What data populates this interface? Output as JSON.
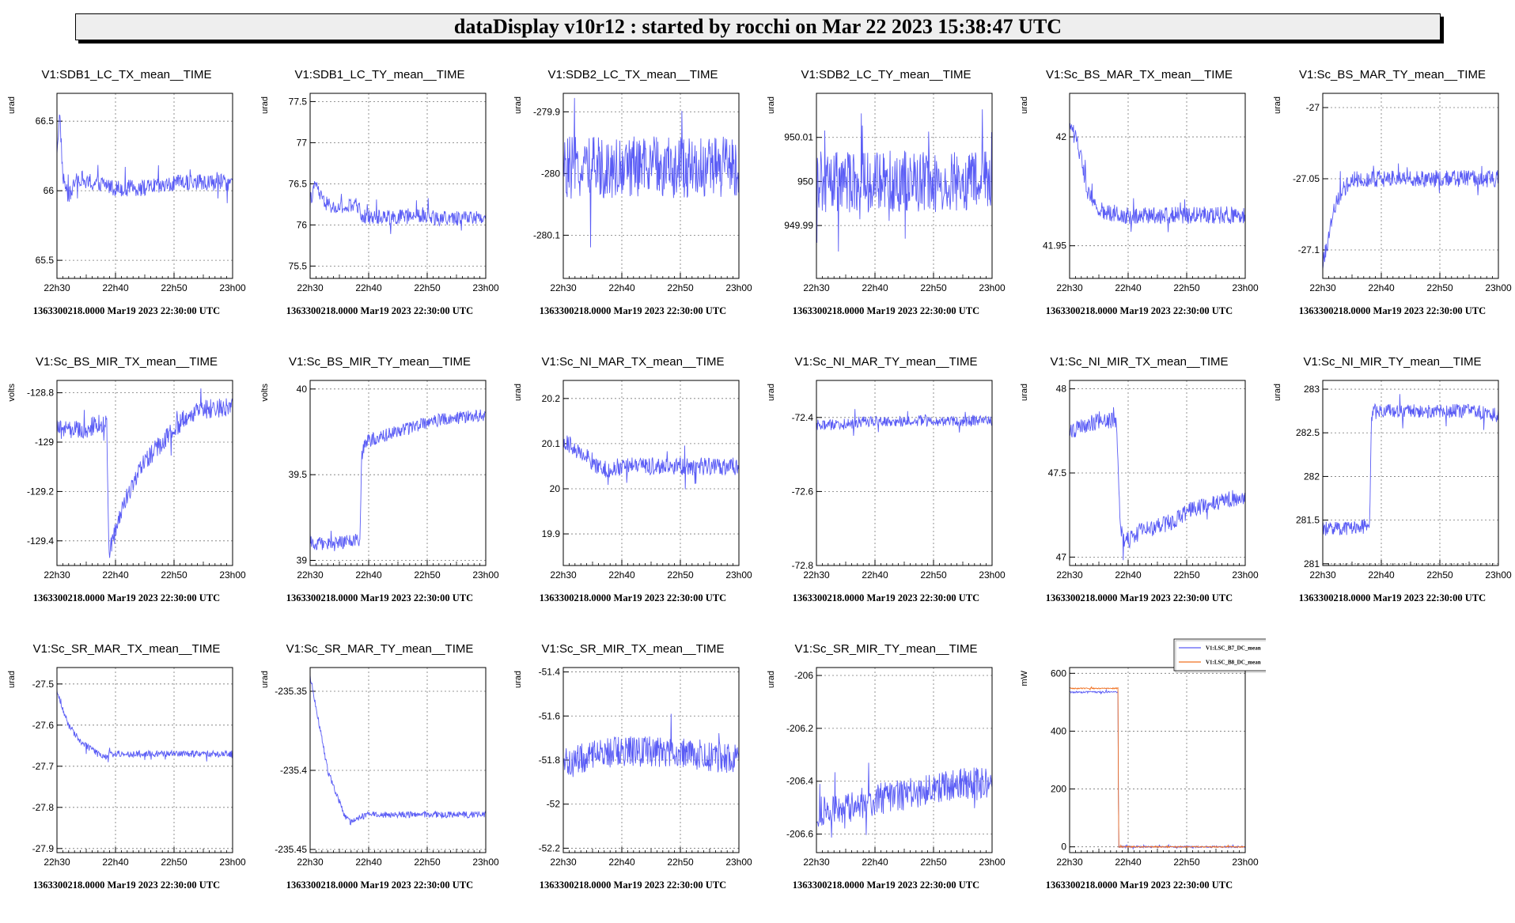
{
  "header": {
    "title": "dataDisplay v10r12 : started by rocchi on Mar 22 2023 15:38:47 UTC"
  },
  "colors": {
    "trace": "#5a5cf5",
    "trace2": "#f07020",
    "background": "#ffffff",
    "title_bg": "#eeeeee"
  },
  "common": {
    "footer": "1363300218.0000 Mar19 2023 22:30:00 UTC",
    "x_ticks": [
      "22h30",
      "22h40",
      "22h50",
      "23h00"
    ],
    "x_range_minutes": [
      0,
      30
    ]
  },
  "chart_data": [
    {
      "type": "line",
      "title": "V1:SDB1_LC_TX_mean__TIME",
      "ylabel": "urad",
      "ylim": [
        65.37,
        66.7
      ],
      "yticks": [
        65.5,
        66,
        66.5
      ],
      "ytick_labels": [
        "65.5",
        "66",
        "66.5"
      ],
      "series": [
        {
          "name": "V1:SDB1_LC_TX_mean",
          "x": [
            0,
            0.5,
            1,
            2,
            3,
            4,
            5,
            6,
            8,
            10,
            12,
            15,
            18,
            20,
            22,
            25,
            28,
            30
          ],
          "y": [
            66.3,
            66.55,
            66.1,
            65.95,
            66.05,
            66.1,
            66.05,
            66.05,
            66.05,
            66.02,
            66.02,
            66.02,
            66.03,
            66.05,
            66.06,
            66.06,
            66.06,
            66.06
          ],
          "noise": 0.06
        }
      ]
    },
    {
      "type": "line",
      "title": "V1:SDB1_LC_TY_mean__TIME",
      "ylabel": "urad",
      "ylim": [
        75.35,
        77.6
      ],
      "yticks": [
        75.5,
        76,
        76.5,
        77,
        77.5
      ],
      "ytick_labels": [
        "75.5",
        "76",
        "76.5",
        "77",
        "77.5"
      ],
      "series": [
        {
          "name": "V1:SDB1_LC_TY_mean",
          "x": [
            0,
            1,
            2,
            4,
            6,
            8,
            9,
            10,
            12,
            15,
            18,
            20,
            22,
            25,
            28,
            30
          ],
          "y": [
            76.3,
            76.5,
            76.3,
            76.2,
            76.2,
            76.25,
            76.1,
            76.1,
            76.1,
            76.1,
            76.1,
            76.1,
            76.08,
            76.08,
            76.1,
            76.1
          ],
          "noise": 0.09
        }
      ]
    },
    {
      "type": "line",
      "title": "V1:SDB2_LC_TX_mean__TIME",
      "ylabel": "urad",
      "ylim": [
        -280.17,
        -279.87
      ],
      "yticks": [
        -280.1,
        -280,
        -279.9
      ],
      "ytick_labels": [
        "-280.1",
        "-280",
        "-279.9"
      ],
      "series": [
        {
          "name": "V1:SDB2_LC_TX_mean",
          "x": [
            0,
            5,
            10,
            15,
            20,
            25,
            30
          ],
          "y": [
            -279.99,
            -279.99,
            -279.99,
            -279.99,
            -279.99,
            -279.99,
            -279.99
          ],
          "noise": 0.05
        }
      ]
    },
    {
      "type": "line",
      "title": "V1:SDB2_LC_TY_mean__TIME",
      "ylabel": "urad",
      "ylim": [
        949.978,
        950.02
      ],
      "yticks": [
        949.99,
        950,
        950.01
      ],
      "ytick_labels": [
        "949.99",
        "950",
        "950.01"
      ],
      "series": [
        {
          "name": "V1:SDB2_LC_TY_mean",
          "x": [
            0,
            5,
            10,
            15,
            20,
            25,
            30
          ],
          "y": [
            950,
            950,
            950,
            950,
            950,
            950,
            950
          ],
          "noise": 0.007
        }
      ]
    },
    {
      "type": "line",
      "title": "V1:Sc_BS_MAR_TX_mean__TIME",
      "ylabel": "urad",
      "ylim": [
        41.935,
        42.02
      ],
      "yticks": [
        41.95,
        42
      ],
      "ytick_labels": [
        "41.95",
        "42"
      ],
      "series": [
        {
          "name": "V1:Sc_BS_MAR_TX_mean",
          "x": [
            0,
            1,
            2,
            3,
            4,
            5,
            6,
            8,
            10,
            15,
            20,
            25,
            30
          ],
          "y": [
            42.005,
            42.0,
            41.99,
            41.975,
            41.97,
            41.967,
            41.965,
            41.965,
            41.964,
            41.964,
            41.964,
            41.964,
            41.964
          ],
          "noise": 0.004
        }
      ]
    },
    {
      "type": "line",
      "title": "V1:Sc_BS_MAR_TY_mean__TIME",
      "ylabel": "urad",
      "ylim": [
        -27.12,
        -26.99
      ],
      "yticks": [
        -27.1,
        -27.05,
        -27
      ],
      "ytick_labels": [
        "-27.1",
        "-27.05",
        "-27"
      ],
      "series": [
        {
          "name": "V1:Sc_BS_MAR_TY_mean",
          "x": [
            0,
            1,
            2,
            3,
            4,
            5,
            6,
            8,
            10,
            15,
            20,
            25,
            30
          ],
          "y": [
            -27.11,
            -27.09,
            -27.07,
            -27.06,
            -27.055,
            -27.05,
            -27.05,
            -27.05,
            -27.05,
            -27.05,
            -27.05,
            -27.05,
            -27.05
          ],
          "noise": 0.006
        }
      ]
    },
    {
      "type": "line",
      "title": "V1:Sc_BS_MIR_TX_mean__TIME",
      "ylabel": "volts",
      "ylim": [
        -129.5,
        -128.75
      ],
      "yticks": [
        -129.4,
        -129.2,
        -129,
        -128.8
      ],
      "ytick_labels": [
        "-129.4",
        "-129.2",
        "-129",
        "-128.8"
      ],
      "series": [
        {
          "name": "V1:Sc_BS_MIR_TX_mean",
          "x": [
            0,
            4,
            8.5,
            8.8,
            9,
            10,
            12,
            14,
            16,
            18,
            20,
            22,
            25,
            28,
            30
          ],
          "y": [
            -128.95,
            -128.95,
            -128.92,
            -129.35,
            -129.45,
            -129.35,
            -129.22,
            -129.12,
            -129.05,
            -129.0,
            -128.95,
            -128.9,
            -128.87,
            -128.86,
            -128.86
          ],
          "noise": 0.04
        }
      ]
    },
    {
      "type": "line",
      "title": "V1:Sc_BS_MIR_TY_mean__TIME",
      "ylabel": "volts",
      "ylim": [
        38.97,
        40.05
      ],
      "yticks": [
        39,
        39.5,
        40
      ],
      "ytick_labels": [
        "39",
        "39.5",
        "40"
      ],
      "series": [
        {
          "name": "V1:Sc_BS_MIR_TY_mean",
          "x": [
            0,
            4,
            8.5,
            8.8,
            9,
            10,
            12,
            15,
            18,
            20,
            22,
            25,
            28,
            30
          ],
          "y": [
            39.1,
            39.1,
            39.12,
            39.6,
            39.65,
            39.7,
            39.72,
            39.75,
            39.78,
            39.8,
            39.82,
            39.83,
            39.85,
            39.85
          ],
          "noise": 0.04
        }
      ]
    },
    {
      "type": "line",
      "title": "V1:Sc_NI_MAR_TX_mean__TIME",
      "ylabel": "urad",
      "ylim": [
        19.83,
        20.24
      ],
      "yticks": [
        19.9,
        20,
        20.1,
        20.2
      ],
      "ytick_labels": [
        "19.9",
        "20",
        "20.1",
        "20.2"
      ],
      "series": [
        {
          "name": "V1:Sc_NI_MAR_TX_mean",
          "x": [
            0,
            2,
            4,
            6,
            8,
            9,
            10,
            15,
            20,
            25,
            30
          ],
          "y": [
            20.11,
            20.09,
            20.07,
            20.05,
            20.04,
            20.05,
            20.05,
            20.05,
            20.05,
            20.05,
            20.05
          ],
          "noise": 0.02
        }
      ]
    },
    {
      "type": "line",
      "title": "V1:Sc_NI_MAR_TY_mean__TIME",
      "ylabel": "urad",
      "ylim": [
        -72.8,
        -72.3
      ],
      "yticks": [
        -72.8,
        -72.6,
        -72.4
      ],
      "ytick_labels": [
        "-72.8",
        "-72.6",
        "-72.4"
      ],
      "series": [
        {
          "name": "V1:Sc_NI_MAR_TY_mean",
          "x": [
            0,
            4,
            8,
            8.5,
            9,
            12,
            15,
            20,
            25,
            30
          ],
          "y": [
            -72.42,
            -72.42,
            -72.41,
            -72.41,
            -72.41,
            -72.41,
            -72.41,
            -72.41,
            -72.41,
            -72.41
          ],
          "noise": 0.015
        }
      ]
    },
    {
      "type": "line",
      "title": "V1:Sc_NI_MIR_TX_mean__TIME",
      "ylabel": "urad",
      "ylim": [
        46.95,
        48.05
      ],
      "yticks": [
        47,
        47.5,
        48
      ],
      "ytick_labels": [
        "47",
        "47.5",
        "48"
      ],
      "series": [
        {
          "name": "V1:Sc_NI_MIR_TX_mean",
          "x": [
            0,
            4,
            8,
            8.5,
            9,
            10,
            12,
            15,
            18,
            20,
            22,
            25,
            28,
            30
          ],
          "y": [
            47.75,
            47.8,
            47.82,
            47.3,
            47.1,
            47.1,
            47.15,
            47.18,
            47.22,
            47.27,
            47.3,
            47.32,
            47.35,
            47.35
          ],
          "noise": 0.05
        }
      ]
    },
    {
      "type": "line",
      "title": "V1:Sc_NI_MIR_TY_mean__TIME",
      "ylabel": "urad",
      "ylim": [
        280.98,
        283.1
      ],
      "yticks": [
        281,
        281.5,
        282,
        282.5,
        283
      ],
      "ytick_labels": [
        "281",
        "281.5",
        "282",
        "282.5",
        "283"
      ],
      "series": [
        {
          "name": "V1:Sc_NI_MIR_TY_mean",
          "x": [
            0,
            4,
            8,
            8.3,
            8.6,
            10,
            15,
            20,
            25,
            30
          ],
          "y": [
            281.4,
            281.4,
            281.45,
            282.6,
            282.75,
            282.75,
            282.75,
            282.75,
            282.75,
            282.7
          ],
          "noise": 0.08
        }
      ]
    },
    {
      "type": "line",
      "title": "V1:Sc_SR_MAR_TX_mean__TIME",
      "ylabel": "urad",
      "ylim": [
        -27.91,
        -27.46
      ],
      "yticks": [
        -27.9,
        -27.8,
        -27.7,
        -27.6,
        -27.5
      ],
      "ytick_labels": [
        "-27.9",
        "-27.8",
        "-27.7",
        "-27.6",
        "-27.5"
      ],
      "series": [
        {
          "name": "V1:Sc_SR_MAR_TX_mean",
          "x": [
            0,
            1,
            2,
            3,
            4,
            5,
            6,
            7,
            8,
            9,
            10,
            15,
            20,
            25,
            30
          ],
          "y": [
            -27.52,
            -27.56,
            -27.6,
            -27.62,
            -27.64,
            -27.65,
            -27.66,
            -27.67,
            -27.68,
            -27.67,
            -27.67,
            -27.67,
            -27.67,
            -27.67,
            -27.67
          ],
          "noise": 0.008
        }
      ]
    },
    {
      "type": "line",
      "title": "V1:Sc_SR_MAR_TY_mean__TIME",
      "ylabel": "urad",
      "ylim": [
        -235.452,
        -235.335
      ],
      "yticks": [
        -235.45,
        -235.4,
        -235.35
      ],
      "ytick_labels": [
        "-235.45",
        "-235.4",
        "-235.35"
      ],
      "series": [
        {
          "name": "V1:Sc_SR_MAR_TY_mean",
          "x": [
            0,
            1,
            2,
            3,
            4,
            5,
            6,
            7,
            8,
            10,
            15,
            20,
            25,
            30
          ],
          "y": [
            -235.34,
            -235.36,
            -235.38,
            -235.4,
            -235.41,
            -235.42,
            -235.43,
            -235.433,
            -235.43,
            -235.428,
            -235.428,
            -235.428,
            -235.428,
            -235.428
          ],
          "noise": 0.002
        }
      ]
    },
    {
      "type": "line",
      "title": "V1:Sc_SR_MIR_TX_mean__TIME",
      "ylabel": "urad",
      "ylim": [
        -52.22,
        -51.38
      ],
      "yticks": [
        -52.2,
        -52,
        -51.8,
        -51.6,
        -51.4
      ],
      "ytick_labels": [
        "-52.2",
        "-52",
        "-51.8",
        "-51.6",
        "-51.4"
      ],
      "series": [
        {
          "name": "V1:Sc_SR_MIR_TX_mean",
          "x": [
            0,
            5,
            10,
            15,
            20,
            25,
            30
          ],
          "y": [
            -51.82,
            -51.78,
            -51.76,
            -51.76,
            -51.77,
            -51.78,
            -51.8
          ],
          "noise": 0.07
        }
      ]
    },
    {
      "type": "line",
      "title": "V1:Sc_SR_MIR_TY_mean__TIME",
      "ylabel": "urad",
      "ylim": [
        -206.67,
        -205.97
      ],
      "yticks": [
        -206.6,
        -206.4,
        -206.2,
        -206
      ],
      "ytick_labels": [
        "-206.6",
        "-206.4",
        "-206.2",
        "-206"
      ],
      "series": [
        {
          "name": "V1:Sc_SR_MIR_TY_mean",
          "x": [
            0,
            5,
            10,
            15,
            20,
            25,
            30
          ],
          "y": [
            -206.52,
            -206.5,
            -206.47,
            -206.45,
            -206.43,
            -206.41,
            -206.4
          ],
          "noise": 0.06
        }
      ]
    },
    {
      "type": "line",
      "title": "",
      "ylabel": "mW",
      "ylim": [
        -20,
        620
      ],
      "yticks": [
        0,
        200,
        400,
        600
      ],
      "ytick_labels": [
        "0",
        "200",
        "400",
        "600"
      ],
      "legend": [
        "V1:LSC_B7_DC_mean",
        "V1:LSC_B8_DC_mean"
      ],
      "legend_position": "top",
      "series": [
        {
          "name": "V1:LSC_B7_DC_mean",
          "color": "#5a5cf5",
          "x": [
            0,
            8.3,
            8.35,
            30
          ],
          "y": [
            535,
            535,
            0,
            0
          ],
          "noise": 3
        },
        {
          "name": "V1:LSC_B8_DC_mean",
          "color": "#f07020",
          "x": [
            0,
            8.3,
            8.35,
            30
          ],
          "y": [
            548,
            548,
            0,
            0
          ],
          "noise": 2
        }
      ]
    }
  ]
}
